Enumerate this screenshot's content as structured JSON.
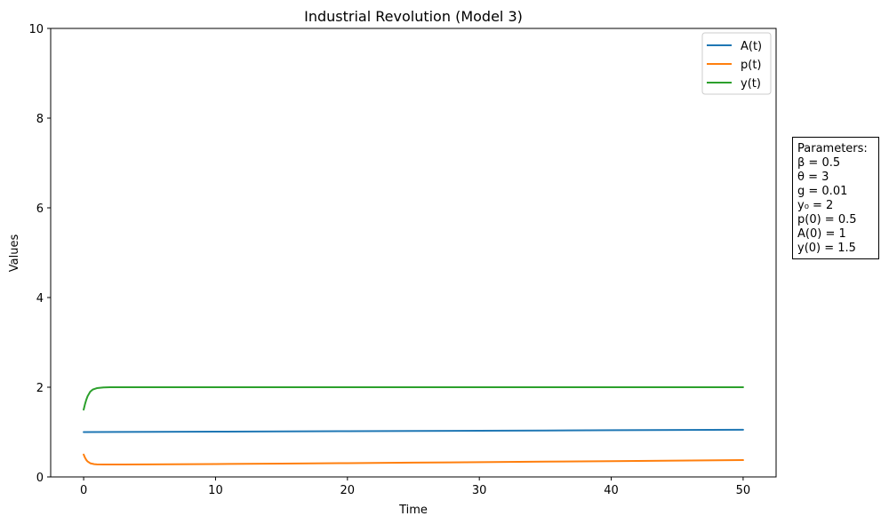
{
  "chart_data": {
    "type": "line",
    "title": "Industrial Revolution (Model 3)",
    "xlabel": "Time",
    "ylabel": "Values",
    "xlim": [
      -2.5,
      52.5
    ],
    "ylim": [
      0,
      10
    ],
    "xticks": [
      0,
      10,
      20,
      30,
      40,
      50
    ],
    "yticks": [
      0,
      2,
      4,
      6,
      8,
      10
    ],
    "grid": false,
    "legend_position": "top-right",
    "series": [
      {
        "name": "A(t)",
        "color": "#1f77b4",
        "x": [
          0,
          5,
          10,
          15,
          20,
          25,
          30,
          35,
          40,
          45,
          50
        ],
        "y": [
          1.0,
          1.005,
          1.01,
          1.015,
          1.02,
          1.025,
          1.03,
          1.035,
          1.041,
          1.046,
          1.051
        ]
      },
      {
        "name": "p(t)",
        "color": "#ff7f0e",
        "x": [
          0,
          0.1,
          0.2,
          0.3,
          0.5,
          0.8,
          1,
          1.5,
          2,
          3,
          5,
          10,
          15,
          20,
          25,
          30,
          35,
          40,
          45,
          50
        ],
        "y": [
          0.5,
          0.43,
          0.38,
          0.345,
          0.305,
          0.285,
          0.28,
          0.278,
          0.277,
          0.277,
          0.279,
          0.288,
          0.298,
          0.308,
          0.319,
          0.33,
          0.341,
          0.352,
          0.364,
          0.375
        ]
      },
      {
        "name": "y(t)",
        "color": "#2ca02c",
        "x": [
          0,
          0.1,
          0.2,
          0.3,
          0.5,
          0.7,
          1,
          1.5,
          2,
          3,
          5,
          10,
          20,
          30,
          40,
          50
        ],
        "y": [
          1.5,
          1.62,
          1.72,
          1.8,
          1.9,
          1.95,
          1.98,
          1.995,
          2.0,
          2.0,
          2.0,
          2.0,
          2.0,
          2.0,
          2.0,
          2.0
        ]
      }
    ]
  },
  "params": {
    "title": "Parameters:",
    "lines": [
      "β = 0.5",
      "θ = 3",
      "g = 0.01",
      "y₀ = 2",
      "p(0) = 0.5",
      "A(0) = 1",
      "y(0) = 1.5"
    ]
  }
}
